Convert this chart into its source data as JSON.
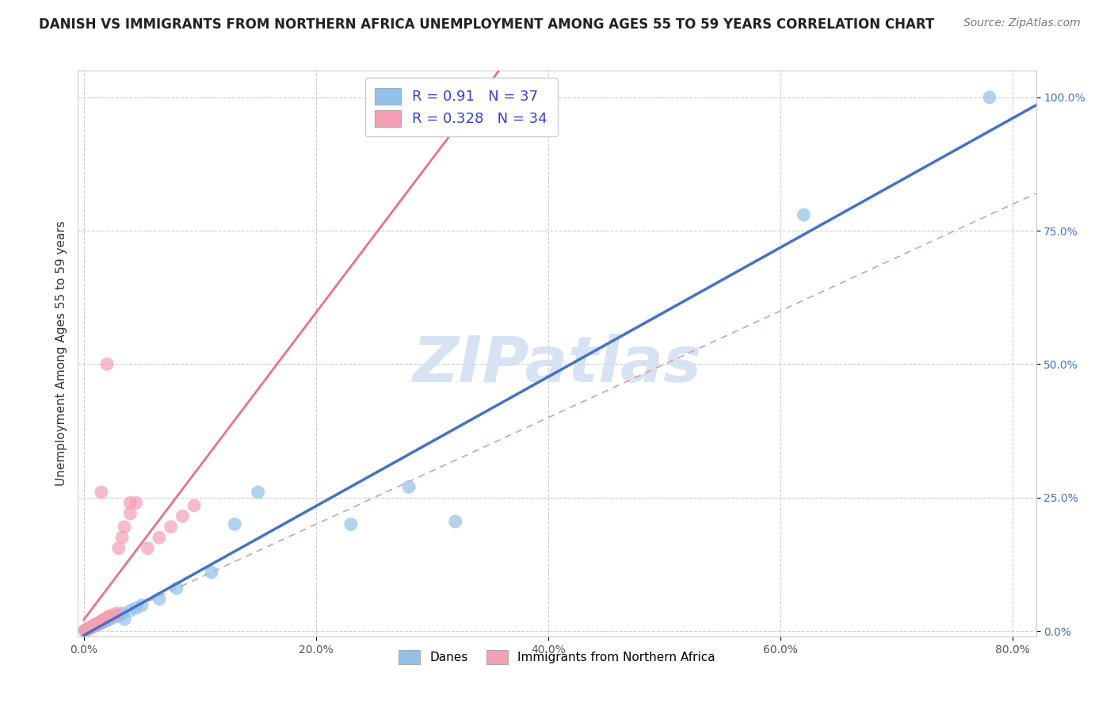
{
  "title": "DANISH VS IMMIGRANTS FROM NORTHERN AFRICA UNEMPLOYMENT AMONG AGES 55 TO 59 YEARS CORRELATION CHART",
  "source": "Source: ZipAtlas.com",
  "ylabel": "Unemployment Among Ages 55 to 59 years",
  "watermark": "ZIPatlas",
  "danes_R": 0.91,
  "danes_N": 37,
  "immigrants_R": 0.328,
  "immigrants_N": 34,
  "danes_color": "#92c0e8",
  "immigrants_color": "#f4a0b5",
  "danes_line_color": "#4472c4",
  "immigrants_line_color": "#e87090",
  "ref_line_color": "#ccaaaa",
  "background_color": "#ffffff",
  "grid_color": "#cccccc",
  "plot_bg_color": "#ffffff",
  "danes_scatter_x": [
    0.001,
    0.002,
    0.003,
    0.004,
    0.005,
    0.006,
    0.007,
    0.008,
    0.009,
    0.01,
    0.011,
    0.012,
    0.013,
    0.014,
    0.015,
    0.016,
    0.018,
    0.02,
    0.022,
    0.025,
    0.028,
    0.03,
    0.033,
    0.035,
    0.04,
    0.045,
    0.05,
    0.065,
    0.08,
    0.11,
    0.13,
    0.15,
    0.23,
    0.28,
    0.32,
    0.62,
    0.78
  ],
  "danes_scatter_y": [
    0.001,
    0.002,
    0.003,
    0.004,
    0.005,
    0.006,
    0.007,
    0.008,
    0.009,
    0.01,
    0.011,
    0.012,
    0.013,
    0.014,
    0.015,
    0.016,
    0.018,
    0.02,
    0.022,
    0.025,
    0.028,
    0.03,
    0.033,
    0.022,
    0.038,
    0.043,
    0.048,
    0.06,
    0.08,
    0.11,
    0.2,
    0.26,
    0.2,
    0.27,
    0.205,
    0.78,
    1.0
  ],
  "immigrants_scatter_x": [
    0.001,
    0.002,
    0.003,
    0.004,
    0.005,
    0.006,
    0.007,
    0.008,
    0.009,
    0.01,
    0.011,
    0.012,
    0.013,
    0.014,
    0.015,
    0.016,
    0.018,
    0.02,
    0.022,
    0.025,
    0.028,
    0.03,
    0.033,
    0.035,
    0.04,
    0.045,
    0.055,
    0.065,
    0.075,
    0.085,
    0.095,
    0.015,
    0.02,
    0.04
  ],
  "immigrants_scatter_y": [
    0.001,
    0.002,
    0.003,
    0.005,
    0.006,
    0.007,
    0.008,
    0.01,
    0.011,
    0.012,
    0.013,
    0.014,
    0.015,
    0.016,
    0.018,
    0.02,
    0.022,
    0.025,
    0.028,
    0.03,
    0.033,
    0.155,
    0.175,
    0.195,
    0.22,
    0.24,
    0.155,
    0.175,
    0.195,
    0.215,
    0.235,
    0.26,
    0.5,
    0.24
  ],
  "xlim": [
    -0.005,
    0.82
  ],
  "ylim": [
    -0.01,
    1.05
  ],
  "xticks": [
    0.0,
    0.2,
    0.4,
    0.6,
    0.8
  ],
  "yticks": [
    0.0,
    0.25,
    0.5,
    0.75,
    1.0
  ],
  "tick_color_x": "#555555",
  "tick_color_y": "#4472c4",
  "title_fontsize": 12,
  "source_fontsize": 10,
  "ylabel_fontsize": 11,
  "tick_fontsize": 10
}
